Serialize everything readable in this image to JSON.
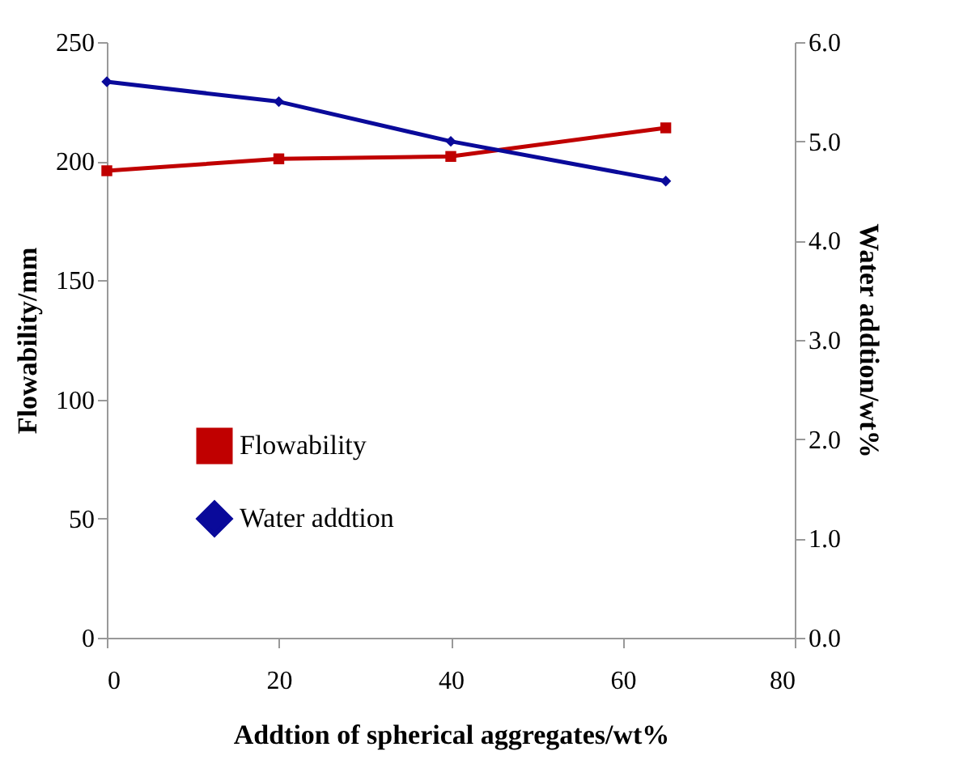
{
  "chart_data": {
    "type": "line",
    "xlabel": "Addtion of spherical aggregates/wt%",
    "ylabel": "Flowability/mm",
    "y2label": "Water addtion/wt%",
    "x": [
      0,
      20,
      40,
      65
    ],
    "series": [
      {
        "name": "Flowability",
        "color": "#c00000",
        "values": [
          196,
          201,
          202,
          214
        ],
        "marker": "square"
      },
      {
        "name": "Water addtion",
        "color": "#0a0a9a",
        "values": [
          5.6,
          5.4,
          5.0,
          4.6
        ],
        "axis": "y2",
        "marker": "diamond"
      }
    ],
    "xlim": [
      0,
      80
    ],
    "xticks": [
      0,
      20,
      40,
      60,
      80
    ],
    "ylim": [
      0,
      250
    ],
    "yticks": [
      0,
      50,
      100,
      150,
      200,
      250
    ],
    "y2lim": [
      0,
      6
    ],
    "y2ticks": [
      {
        "value": 0,
        "label": "0.0"
      },
      {
        "value": 1,
        "label": "1.0"
      },
      {
        "value": 2,
        "label": "2.0"
      },
      {
        "value": 3,
        "label": "3.0"
      },
      {
        "value": 4,
        "label": "4.0"
      },
      {
        "value": 5,
        "label": "5.0"
      },
      {
        "value": 6,
        "label": "6.0"
      }
    ],
    "grid": false,
    "legend": "bottom left"
  }
}
